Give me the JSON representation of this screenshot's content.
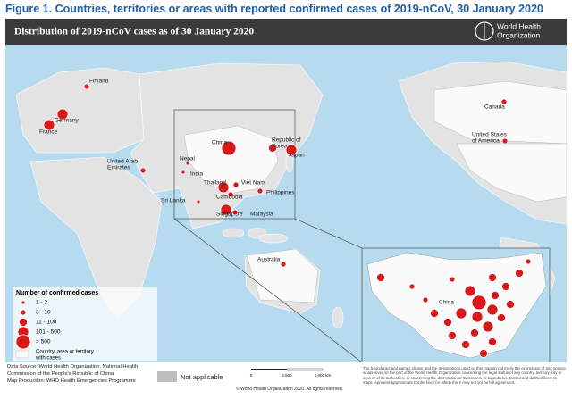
{
  "header": {
    "title": "Figure 1. Countries, territories or areas with reported confirmed cases of 2019-nCoV, 30 January 2020"
  },
  "map": {
    "banner": "Distribution of 2019-nCoV cases as of 30 January 2020",
    "logo": [
      "World Health",
      "Organization"
    ],
    "countries": [
      {
        "lines": [
          "Finland"
        ]
      },
      {
        "lines": [
          "Germany"
        ]
      },
      {
        "lines": [
          "France"
        ]
      },
      {
        "lines": [
          "United Arab",
          "Emirates"
        ]
      },
      {
        "lines": [
          "Nepal"
        ]
      },
      {
        "lines": [
          "India"
        ]
      },
      {
        "lines": [
          "China"
        ]
      },
      {
        "lines": [
          "Republic of",
          "Korea"
        ]
      },
      {
        "lines": [
          "Japan"
        ]
      },
      {
        "lines": [
          "Thailand"
        ]
      },
      {
        "lines": [
          "Viet Nam"
        ]
      },
      {
        "lines": [
          "Cambodia"
        ]
      },
      {
        "lines": [
          "Philippines"
        ]
      },
      {
        "lines": [
          "Sri Lanka"
        ]
      },
      {
        "lines": [
          "Singapore"
        ]
      },
      {
        "lines": [
          "Malaysia"
        ]
      },
      {
        "lines": [
          "Australia"
        ]
      },
      {
        "lines": [
          "Canada"
        ]
      },
      {
        "lines": [
          "United States",
          "of America"
        ]
      }
    ],
    "inset_label": "China",
    "legend": {
      "title": "Number of confirmed cases",
      "classes": [
        "1 - 2",
        "3 - 10",
        "11 - 100",
        "101 - 500",
        "> 500"
      ],
      "area": [
        "Country, area or territory",
        "with cases"
      ]
    }
  },
  "footer": {
    "data_source": "Data Source: World Health Organization, National Health Commission of the People's Republic of China",
    "map_production": "Map Production: WHO Health Emergencies Programme",
    "not_applicable": "Not applicable",
    "scale": [
      "0",
      "2,500",
      "5,000 km"
    ],
    "copyright": "© World Health Organization 2020. All rights reserved.",
    "disclaimer": "The boundaries and names shown and the designations used on this map do not imply the expression of any opinion whatsoever on the part of the World Health Organization concerning the legal status of any country, territory, city or area or of its authorities, or concerning the delimitation of its frontiers or boundaries. Dotted and dashed lines on maps represent approximate border lines for which there may not yet be full agreement."
  }
}
